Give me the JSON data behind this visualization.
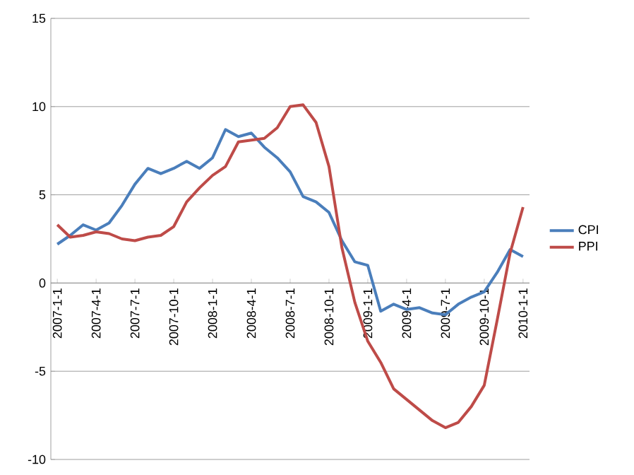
{
  "chart_data": {
    "type": "line",
    "categories": [
      "2007-1-1",
      null,
      null,
      "2007-4-1",
      null,
      null,
      "2007-7-1",
      null,
      null,
      "2007-10-1",
      null,
      null,
      "2008-1-1",
      null,
      null,
      "2008-4-1",
      null,
      null,
      "2008-7-1",
      null,
      null,
      "2008-10-1",
      null,
      null,
      "2009-1-1",
      null,
      null,
      "2009-4-1",
      null,
      null,
      "2009-7-1",
      null,
      null,
      "2009-10-1",
      null,
      null,
      "2010-1-1"
    ],
    "series": [
      {
        "name": "CPI",
        "color": "#4a7ebb",
        "values": [
          2.2,
          2.7,
          3.3,
          3.0,
          3.4,
          4.4,
          5.6,
          6.5,
          6.2,
          6.5,
          6.9,
          6.5,
          7.1,
          8.7,
          8.3,
          8.5,
          7.7,
          7.1,
          6.3,
          4.9,
          4.6,
          4.0,
          2.4,
          1.2,
          1.0,
          -1.6,
          -1.2,
          -1.5,
          -1.4,
          -1.7,
          -1.8,
          -1.2,
          -0.8,
          -0.5,
          0.6,
          1.9,
          1.5
        ]
      },
      {
        "name": "PPI",
        "color": "#be4b48",
        "values": [
          3.3,
          2.6,
          2.7,
          2.9,
          2.8,
          2.5,
          2.4,
          2.6,
          2.7,
          3.2,
          4.6,
          5.4,
          6.1,
          6.6,
          8.0,
          8.1,
          8.2,
          8.8,
          10.0,
          10.1,
          9.1,
          6.6,
          2.0,
          -1.1,
          -3.3,
          -4.5,
          -6.0,
          -6.6,
          -7.2,
          -7.8,
          -8.2,
          -7.9,
          -7.0,
          -5.8,
          -2.1,
          1.7,
          4.3
        ]
      }
    ],
    "ylim": [
      -10,
      15
    ],
    "yticks": [
      -10,
      -5,
      0,
      5,
      10,
      15
    ],
    "grid": "y",
    "legend": "right",
    "marker": "none",
    "line_style": "solid"
  }
}
